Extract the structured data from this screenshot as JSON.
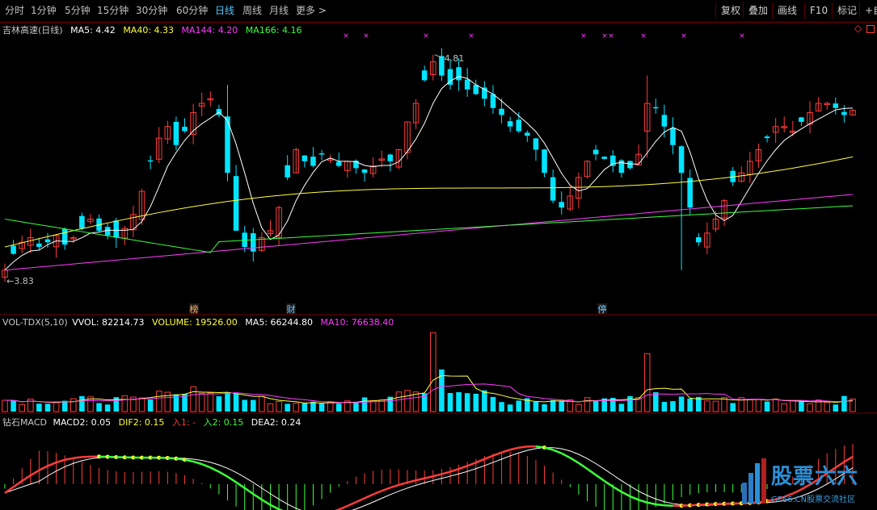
{
  "toolbar": {
    "periods": [
      "分时",
      "1分钟",
      "5分钟",
      "15分钟",
      "30分钟",
      "60分钟",
      "日线",
      "周线",
      "月线",
      "更多 >"
    ],
    "active": "日线",
    "right_buttons": [
      "复权",
      "叠加",
      "画线",
      "F10",
      "标记",
      "+自"
    ]
  },
  "main": {
    "title": "吉林高速(日线)",
    "ma5": "MA5: 4.42",
    "ma40": "MA40: 4.33",
    "ma144": "MA144: 4.20",
    "ma166": "MA166: 4.16",
    "high_label": "4.81",
    "low_label": "3.83",
    "markers": [
      "榜",
      "财",
      "停"
    ]
  },
  "volume": {
    "title": "VOL-TDX(5,10)",
    "vvol": "VVOL: 82214.73",
    "volume": "VOLUME: 19526.00",
    "ma5": "MA5: 66244.80",
    "ma10": "MA10: 76638.40"
  },
  "macd": {
    "title": "钻石MACD",
    "macd2": "MACD2: 0.05",
    "dif2": "DIF2: 0.15",
    "ru1": "入1: -",
    "ru2": "入2: 0.15",
    "dea2": "DEA2: 0.24"
  },
  "watermark": {
    "brand": "股票六六",
    "site": "GP66.CN股票交流社区"
  },
  "colors": {
    "up": "#ff3c3c",
    "down": "#00e4ff",
    "ma5": "#ffffff",
    "ma40": "#ffff3c",
    "ma144": "#ff3cff",
    "ma166": "#3cff3c",
    "frame": "#7a0000"
  },
  "chart_data": {
    "type": "candlestick",
    "price_range": [
      3.75,
      4.9
    ],
    "high": 4.81,
    "low": 3.83,
    "series": [
      {
        "name": "MA5",
        "last": 4.42
      },
      {
        "name": "MA40",
        "last": 4.33
      },
      {
        "name": "MA144",
        "last": 4.2
      },
      {
        "name": "MA166",
        "last": 4.16
      }
    ],
    "close_path": [
      3.88,
      3.95,
      4.0,
      4.02,
      3.98,
      4.0,
      4.03,
      3.99,
      4.02,
      4.06,
      4.1,
      4.05,
      4.03,
      4.02,
      4.06,
      4.12,
      4.22,
      4.35,
      4.45,
      4.5,
      4.42,
      4.48,
      4.56,
      4.6,
      4.62,
      4.55,
      4.3,
      4.05,
      3.98,
      3.96,
      4.02,
      4.05,
      4.15,
      4.28,
      4.4,
      4.35,
      4.33,
      4.38,
      4.36,
      4.33,
      4.35,
      4.32,
      4.3,
      4.33,
      4.36,
      4.35,
      4.4,
      4.52,
      4.6,
      4.7,
      4.78,
      4.72,
      4.68,
      4.7,
      4.66,
      4.64,
      4.62,
      4.58,
      4.55,
      4.5,
      4.48,
      4.46,
      4.4,
      4.3,
      4.18,
      4.15,
      4.2,
      4.28,
      4.35,
      4.38,
      4.36,
      4.33,
      4.3,
      4.32,
      4.38,
      4.6,
      4.58,
      4.5,
      4.42,
      4.3,
      4.15,
      4.0,
      4.04,
      4.1,
      4.18,
      4.26,
      4.3,
      4.35,
      4.4,
      4.45,
      4.5,
      4.5,
      4.48,
      4.52,
      4.56,
      4.6,
      4.6,
      4.58,
      4.55,
      4.57
    ],
    "volume_range": [
      0,
      230000
    ],
    "macd_range": [
      -0.25,
      0.3
    ]
  }
}
